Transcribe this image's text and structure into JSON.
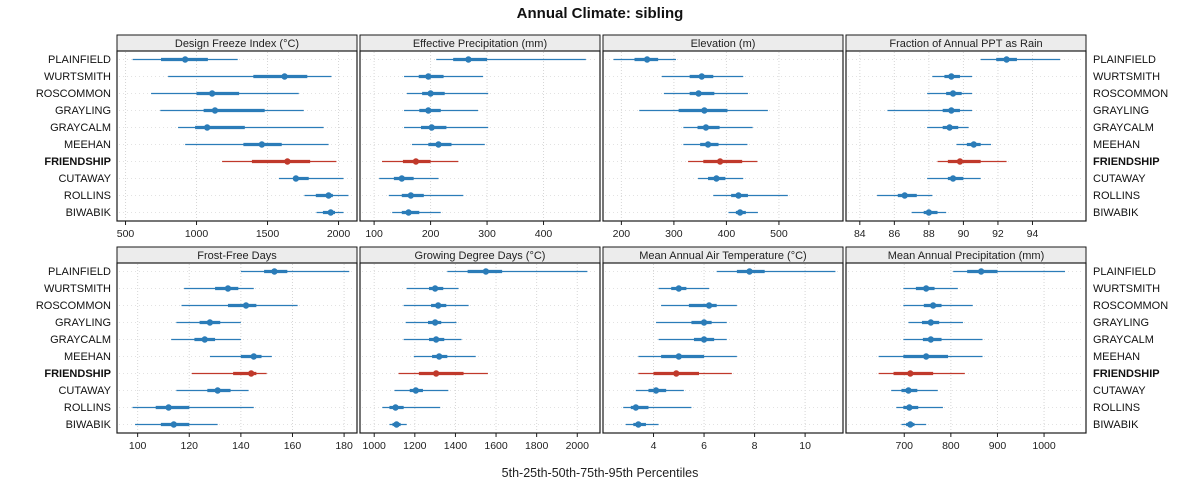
{
  "chart_data": {
    "type": "dotplot-percentiles",
    "title": "Annual Climate: sibling",
    "caption": "5th-25th-50th-75th-95th Percentiles",
    "percentiles": [
      "5th",
      "25th",
      "50th",
      "75th",
      "95th"
    ],
    "sites": [
      "PLAINFIELD",
      "WURTSMITH",
      "ROSCOMMON",
      "GRAYLING",
      "GRAYCALM",
      "MEEHAN",
      "FRIENDSHIP",
      "CUTAWAY",
      "ROLLINS",
      "BIWABIK"
    ],
    "highlight_site": "FRIENDSHIP",
    "colors": {
      "normal": "#2b7cb8",
      "highlight": "#c0392b",
      "strip_bg": "#ececec",
      "grid": "#d6d6d6",
      "border": "#1a1a1a"
    },
    "legend_position": "none",
    "grid": true,
    "panels": [
      {
        "title": "Design Freeze Index (°C)",
        "ticks": [
          500,
          1000,
          1500,
          2000
        ],
        "xlim": [
          440,
          2130
        ],
        "values": [
          [
            550,
            750,
            920,
            1080,
            1290
          ],
          [
            800,
            1400,
            1620,
            1780,
            1950
          ],
          [
            680,
            1000,
            1110,
            1300,
            1720
          ],
          [
            745,
            1050,
            1130,
            1480,
            1755
          ],
          [
            870,
            990,
            1075,
            1340,
            1895
          ],
          [
            920,
            1330,
            1460,
            1600,
            1930
          ],
          [
            1180,
            1390,
            1640,
            1800,
            1985
          ],
          [
            1580,
            1680,
            1700,
            1790,
            2035
          ],
          [
            1760,
            1840,
            1930,
            1960,
            2070
          ],
          [
            1845,
            1890,
            1945,
            1975,
            2035
          ]
        ]
      },
      {
        "title": "Effective Precipitation (mm)",
        "ticks": [
          100,
          200,
          300,
          400
        ],
        "xlim": [
          75,
          500
        ],
        "values": [
          [
            210,
            240,
            267,
            300,
            475
          ],
          [
            153,
            179,
            196,
            223,
            293
          ],
          [
            158,
            185,
            200,
            225,
            302
          ],
          [
            153,
            180,
            196,
            218,
            284
          ],
          [
            153,
            183,
            202,
            228,
            302
          ],
          [
            167,
            196,
            214,
            237,
            296
          ],
          [
            114,
            151,
            174,
            200,
            249
          ],
          [
            109,
            135,
            149,
            170,
            214
          ],
          [
            126,
            149,
            165,
            188,
            258
          ],
          [
            132,
            149,
            161,
            180,
            218
          ]
        ]
      },
      {
        "title": "Elevation (m)",
        "ticks": [
          200,
          300,
          400,
          500
        ],
        "xlim": [
          165,
          622
        ],
        "values": [
          [
            185,
            225,
            249,
            270,
            304
          ],
          [
            277,
            330,
            353,
            375,
            432
          ],
          [
            281,
            330,
            347,
            377,
            441
          ],
          [
            234,
            309,
            358,
            402,
            479
          ],
          [
            318,
            345,
            361,
            387,
            450
          ],
          [
            318,
            350,
            365,
            385,
            440
          ],
          [
            327,
            356,
            388,
            430,
            459
          ],
          [
            346,
            365,
            381,
            398,
            432
          ],
          [
            375,
            409,
            423,
            441,
            517
          ],
          [
            404,
            418,
            426,
            437,
            460
          ]
        ]
      },
      {
        "title": "Fraction of Annual PPT as Rain",
        "ticks": [
          84,
          86,
          88,
          90,
          92,
          94
        ],
        "xlim": [
          83.2,
          97.1
        ],
        "values": [
          [
            91.0,
            91.9,
            92.5,
            93.1,
            95.6
          ],
          [
            88.2,
            88.9,
            89.3,
            89.8,
            90.5
          ],
          [
            87.9,
            89.0,
            89.4,
            89.9,
            90.5
          ],
          [
            85.6,
            88.8,
            89.3,
            89.8,
            90.5
          ],
          [
            87.9,
            88.8,
            89.2,
            89.7,
            90.3
          ],
          [
            89.6,
            90.2,
            90.6,
            91.0,
            91.6
          ],
          [
            88.5,
            89.1,
            89.8,
            91.0,
            92.5
          ],
          [
            87.9,
            89.1,
            89.4,
            90.0,
            91.0
          ],
          [
            85.0,
            86.2,
            86.6,
            87.3,
            88.2
          ],
          [
            87.0,
            87.7,
            88.0,
            88.5,
            89.0
          ]
        ]
      },
      {
        "title": "Frost-Free Days",
        "ticks": [
          100,
          120,
          140,
          160,
          180
        ],
        "xlim": [
          92,
          185
        ],
        "values": [
          [
            140,
            149,
            153,
            158,
            182
          ],
          [
            118,
            130,
            135,
            139,
            145
          ],
          [
            117,
            135,
            142,
            146,
            162
          ],
          [
            115,
            124,
            128,
            132,
            140
          ],
          [
            113,
            122,
            126,
            130,
            140
          ],
          [
            128,
            140,
            145,
            148,
            152
          ],
          [
            121,
            137,
            144,
            146,
            150
          ],
          [
            115,
            127,
            131,
            136,
            143
          ],
          [
            98,
            107,
            112,
            120,
            145
          ],
          [
            99,
            109,
            114,
            120,
            131
          ]
        ]
      },
      {
        "title": "Growing Degree Days (°C)",
        "ticks": [
          1000,
          1200,
          1400,
          1600,
          1800,
          2000
        ],
        "xlim": [
          930,
          2112
        ],
        "values": [
          [
            1360,
            1460,
            1550,
            1630,
            2050
          ],
          [
            1160,
            1270,
            1300,
            1340,
            1415
          ],
          [
            1145,
            1280,
            1315,
            1355,
            1465
          ],
          [
            1155,
            1265,
            1300,
            1330,
            1405
          ],
          [
            1145,
            1270,
            1305,
            1345,
            1430
          ],
          [
            1195,
            1285,
            1320,
            1360,
            1500
          ],
          [
            1120,
            1220,
            1305,
            1440,
            1560
          ],
          [
            1100,
            1175,
            1205,
            1240,
            1365
          ],
          [
            1040,
            1075,
            1105,
            1145,
            1325
          ],
          [
            1075,
            1090,
            1110,
            1130,
            1160
          ]
        ]
      },
      {
        "title": "Mean Annual Air Temperature (°C)",
        "ticks": [
          4,
          6,
          8,
          10
        ],
        "xlim": [
          2.0,
          11.5
        ],
        "values": [
          [
            6.5,
            7.3,
            7.8,
            8.4,
            11.2
          ],
          [
            4.2,
            4.7,
            5.0,
            5.3,
            6.2
          ],
          [
            4.3,
            5.4,
            6.2,
            6.5,
            7.3
          ],
          [
            4.1,
            5.5,
            6.0,
            6.3,
            6.9
          ],
          [
            4.2,
            5.6,
            6.0,
            6.4,
            6.9
          ],
          [
            3.4,
            4.3,
            5.0,
            6.0,
            7.3
          ],
          [
            3.4,
            4.0,
            4.9,
            5.8,
            7.1
          ],
          [
            3.3,
            3.8,
            4.1,
            4.5,
            5.2
          ],
          [
            2.8,
            3.1,
            3.3,
            3.8,
            5.5
          ],
          [
            2.9,
            3.2,
            3.4,
            3.7,
            4.2
          ]
        ]
      },
      {
        "title": "Mean Annual Precipitation (mm)",
        "ticks": [
          700,
          800,
          900,
          1000
        ],
        "xlim": [
          575,
          1090
        ],
        "values": [
          [
            805,
            835,
            865,
            900,
            1045
          ],
          [
            698,
            725,
            747,
            765,
            815
          ],
          [
            698,
            742,
            762,
            780,
            847
          ],
          [
            709,
            738,
            757,
            775,
            826
          ],
          [
            698,
            740,
            757,
            780,
            868
          ],
          [
            645,
            698,
            747,
            794,
            868
          ],
          [
            645,
            677,
            713,
            762,
            830
          ],
          [
            672,
            694,
            709,
            728,
            772
          ],
          [
            683,
            698,
            711,
            730,
            783
          ],
          [
            694,
            704,
            713,
            722,
            747
          ]
        ]
      }
    ]
  }
}
